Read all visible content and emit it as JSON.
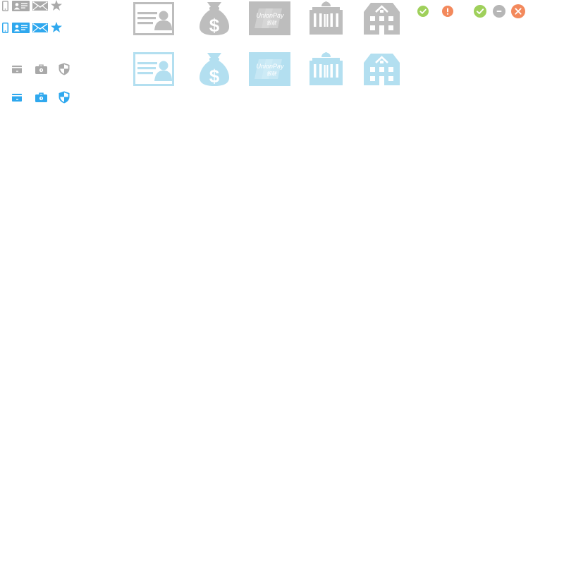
{
  "colors": {
    "gray": "#a9a9a9",
    "gray_light": "#bdbdbd",
    "blue": "#2fa8ee",
    "blue_light": "#b3dff0",
    "green": "#9fd05b",
    "orange": "#f3895c",
    "gray_status": "#b6b6b6"
  },
  "card_brand_text": "UnionPay",
  "card_brand_subtext": "银联",
  "currency_symbol": "$",
  "small_icon_rows": [
    {
      "style": "gray",
      "icons": [
        "mobile-phone-icon",
        "id-card-icon",
        "mail-icon",
        "star-icon"
      ]
    },
    {
      "style": "blue",
      "icons": [
        "mobile-phone-icon",
        "id-card-icon",
        "mail-icon",
        "star-icon"
      ]
    }
  ],
  "medium_icon_rows": [
    {
      "style": "gray",
      "icons": [
        "bank-card-icon",
        "briefcase-icon",
        "shield-icon"
      ]
    },
    {
      "style": "blue",
      "icons": [
        "bank-card-icon",
        "briefcase-icon",
        "shield-icon"
      ]
    }
  ],
  "large_icon_rows": [
    {
      "style": "gray",
      "icons": [
        "id-card-icon",
        "money-bag-icon",
        "unionpay-card-icon",
        "bank-building-icon",
        "house-icon"
      ]
    },
    {
      "style": "blue",
      "icons": [
        "id-card-icon",
        "money-bag-icon",
        "unionpay-card-icon",
        "bank-building-icon",
        "house-icon"
      ]
    }
  ],
  "status_icons": [
    "check-circle-icon",
    "exclamation-circle-icon",
    "check-circle-icon",
    "minus-circle-icon",
    "close-circle-icon"
  ]
}
